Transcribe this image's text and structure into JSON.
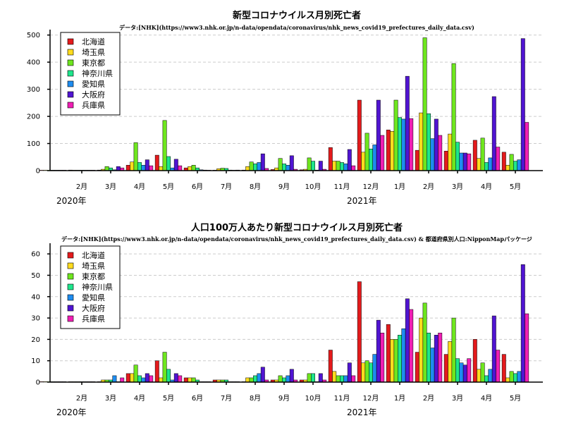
{
  "colors": {
    "北海道": "#e41a1c",
    "埼玉県": "#ffdc1e",
    "東京都": "#6ee61e",
    "神奈川県": "#1ee68c",
    "愛知県": "#1e8cf0",
    "大阪府": "#5014d2",
    "兵庫県": "#f01eb4"
  },
  "chart_data": [
    {
      "type": "bar",
      "title": "新型コロナウイルス月別死亡者",
      "subtitle": "データ:[NHK](https://www3.nhk.or.jp/n-data/opendata/coronavirus/nhk_news_covid19_prefectures_daily_data.csv)",
      "categories": [
        "1月",
        "2月",
        "3月",
        "4月",
        "5月",
        "6月",
        "7月",
        "8月",
        "9月",
        "10月",
        "11月",
        "12月",
        "1月",
        "2月",
        "3月",
        "4月",
        "5月"
      ],
      "x_tick_labels": [
        "2月",
        "3月",
        "4月",
        "5月",
        "6月",
        "7月",
        "8月",
        "9月",
        "10月",
        "11月",
        "12月",
        "1月",
        "2月",
        "3月",
        "4月",
        "5月"
      ],
      "year_labels": [
        "2020年",
        "2021年"
      ],
      "ylim": [
        0,
        520
      ],
      "yticks": [
        0,
        100,
        200,
        300,
        400,
        500
      ],
      "grid": true,
      "legend_position": "top-left",
      "series": [
        {
          "name": "北海道",
          "values": [
            0,
            2,
            2,
            20,
            57,
            10,
            0,
            2,
            4,
            3,
            85,
            260,
            150,
            75,
            72,
            112,
            68
          ]
        },
        {
          "name": "埼玉県",
          "values": [
            0,
            0,
            5,
            32,
            15,
            15,
            7,
            15,
            10,
            5,
            35,
            68,
            145,
            213,
            135,
            45,
            20
          ]
        },
        {
          "name": "東京都",
          "values": [
            0,
            0,
            15,
            103,
            185,
            20,
            9,
            32,
            45,
            47,
            35,
            138,
            260,
            490,
            395,
            120,
            60
          ]
        },
        {
          "name": "神奈川県",
          "values": [
            0,
            0,
            10,
            30,
            52,
            10,
            8,
            25,
            25,
            35,
            30,
            80,
            196,
            210,
            105,
            30,
            35
          ]
        },
        {
          "name": "愛知県",
          "values": [
            0,
            0,
            3,
            20,
            10,
            3,
            2,
            30,
            20,
            2,
            25,
            95,
            190,
            118,
            65,
            47,
            40
          ]
        },
        {
          "name": "大阪府",
          "values": [
            0,
            0,
            15,
            40,
            42,
            2,
            0,
            62,
            55,
            35,
            78,
            260,
            348,
            190,
            65,
            273,
            487
          ]
        },
        {
          "name": "兵庫県",
          "values": [
            0,
            0,
            10,
            18,
            18,
            0,
            1,
            8,
            5,
            5,
            18,
            130,
            192,
            130,
            62,
            87,
            178
          ]
        }
      ]
    },
    {
      "type": "bar",
      "title": "人口100万人あたり新型コロナウイルス月別死亡者",
      "subtitle": "データ:[NHK](https://www3.nhk.or.jp/n-data/opendata/coronavirus/nhk_news_covid19_prefectures_daily_data.csv) & 都道府県別人口:NipponMapパッケージ",
      "categories": [
        "1月",
        "2月",
        "3月",
        "4月",
        "5月",
        "6月",
        "7月",
        "8月",
        "9月",
        "10月",
        "11月",
        "12月",
        "1月",
        "2月",
        "3月",
        "4月",
        "5月"
      ],
      "x_tick_labels": [
        "2月",
        "3月",
        "4月",
        "5月",
        "6月",
        "7月",
        "8月",
        "9月",
        "10月",
        "11月",
        "12月",
        "1月",
        "2月",
        "3月",
        "4月",
        "5月"
      ],
      "year_labels": [
        "2020年",
        "2021年"
      ],
      "ylim": [
        0,
        65
      ],
      "yticks": [
        0,
        10,
        20,
        30,
        40,
        50,
        60
      ],
      "grid": true,
      "legend_position": "top-left",
      "series": [
        {
          "name": "北海道",
          "values": [
            0,
            0,
            0,
            4,
            10,
            2,
            1,
            0,
            1,
            1,
            15,
            47,
            27,
            14,
            13,
            20,
            13
          ]
        },
        {
          "name": "埼玉県",
          "values": [
            0,
            0,
            1,
            4,
            2,
            2,
            1,
            2,
            1,
            1,
            5,
            9,
            20,
            30,
            19,
            6,
            2
          ]
        },
        {
          "name": "東京都",
          "values": [
            0,
            0,
            1,
            8,
            14,
            2,
            1,
            2,
            3,
            4,
            3,
            10,
            20,
            37,
            30,
            9,
            5
          ]
        },
        {
          "name": "神奈川県",
          "values": [
            0,
            0,
            1,
            3,
            6,
            1,
            1,
            3,
            2,
            4,
            3,
            9,
            22,
            23,
            11,
            3,
            4
          ]
        },
        {
          "name": "愛知県",
          "values": [
            0,
            0,
            3,
            2,
            1,
            0,
            0,
            4,
            3,
            0,
            3,
            13,
            25,
            16,
            9,
            6,
            5
          ]
        },
        {
          "name": "大阪府",
          "values": [
            0,
            0,
            0,
            4,
            4,
            0,
            0,
            7,
            6,
            4,
            9,
            29,
            39,
            22,
            8,
            31,
            55
          ]
        },
        {
          "name": "兵庫県",
          "values": [
            0,
            0,
            2,
            3,
            3,
            0,
            0,
            1,
            1,
            1,
            3,
            23,
            34,
            23,
            11,
            15,
            32
          ]
        }
      ]
    }
  ]
}
